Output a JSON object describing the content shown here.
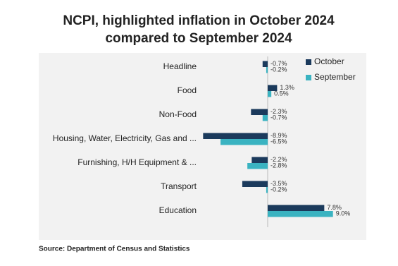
{
  "chart_data": {
    "type": "hbar",
    "title": [
      "NCPI, highlighted inflation in October 2024",
      "compared to September 2024"
    ],
    "categories": [
      "Headline",
      "Food",
      "Non-Food",
      "Housing, Water, Electricity, Gas and ...",
      "Furnishing, H/H Equipment & ...",
      "Transport",
      "Education"
    ],
    "series": [
      {
        "name": "October",
        "color": "#1b3a5c",
        "values": [
          -0.7,
          1.3,
          -2.3,
          -8.9,
          -2.2,
          -3.5,
          7.8
        ],
        "value_labels": [
          "-0.7%",
          "1.3%",
          "-2.3%",
          "-8.9%",
          "-2.2%",
          "-3.5%",
          "7.8%"
        ]
      },
      {
        "name": "September",
        "color": "#3ab3c1",
        "values": [
          -0.2,
          0.5,
          -0.7,
          -6.5,
          -2.8,
          -0.2,
          9.0
        ],
        "value_labels": [
          "-0.2%",
          "0.5%",
          "-0.7%",
          "-6.5%",
          "-2.8%",
          "-0.2%",
          "9.0%"
        ]
      }
    ],
    "xlim": [
      -9,
      9
    ],
    "legend": "upper right",
    "source": "Source: Department of Census and Statistics"
  }
}
